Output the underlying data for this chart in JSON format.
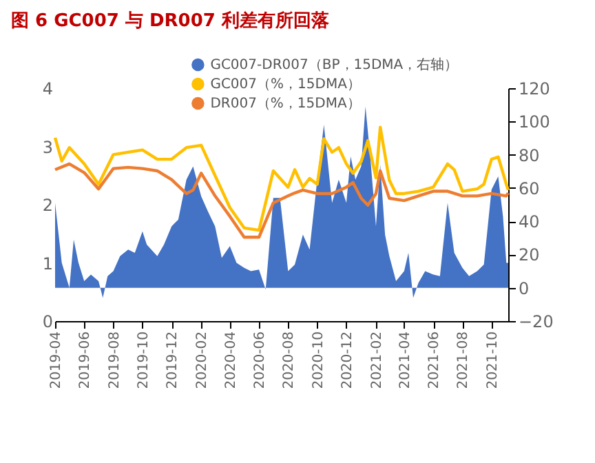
{
  "chart_data": {
    "type": "line",
    "title": "图 6  GC007 与 DR007 利差有所回落",
    "xlim": [
      "2019-04-01",
      "2021-11-05"
    ],
    "xticks": [
      "2019-04",
      "2019-06",
      "2019-08",
      "2019-10",
      "2019-12",
      "2020-02",
      "2020-04",
      "2020-06",
      "2020-08",
      "2020-10",
      "2020-12",
      "2021-02",
      "2021-04",
      "2021-06",
      "2021-08",
      "2021-10"
    ],
    "ylim": [
      0,
      4
    ],
    "yticks": [
      0,
      1,
      2,
      3,
      4
    ],
    "y2lim": [
      -20,
      120
    ],
    "y2ticks": [
      -20,
      0,
      20,
      40,
      60,
      80,
      100,
      120
    ],
    "grid": false,
    "legend": "top",
    "marker": "none",
    "line_style": "solid",
    "series": [
      {
        "name": "GC007-DR007（BP，15DMA，右轴）",
        "type": "area",
        "axis": "y2",
        "color": "#4472c4",
        "x": [
          "2019-04-01",
          "2019-04-15",
          "2019-05-01",
          "2019-05-10",
          "2019-05-20",
          "2019-06-01",
          "2019-06-15",
          "2019-07-01",
          "2019-07-10",
          "2019-07-20",
          "2019-08-01",
          "2019-08-15",
          "2019-09-01",
          "2019-09-15",
          "2019-10-01",
          "2019-10-10",
          "2019-11-01",
          "2019-11-15",
          "2019-12-01",
          "2019-12-15",
          "2020-01-01",
          "2020-01-15",
          "2020-02-01",
          "2020-02-15",
          "2020-03-01",
          "2020-03-15",
          "2020-04-01",
          "2020-04-15",
          "2020-05-01",
          "2020-05-15",
          "2020-06-01",
          "2020-06-15",
          "2020-07-01",
          "2020-07-15",
          "2020-08-01",
          "2020-08-15",
          "2020-09-01",
          "2020-09-15",
          "2020-10-01",
          "2020-10-15",
          "2020-11-01",
          "2020-11-15",
          "2020-12-01",
          "2020-12-10",
          "2020-12-20",
          "2021-01-01",
          "2021-01-10",
          "2021-01-20",
          "2021-02-01",
          "2021-02-10",
          "2021-02-20",
          "2021-03-01",
          "2021-03-15",
          "2021-04-01",
          "2021-04-10",
          "2021-04-20",
          "2021-05-01",
          "2021-05-15",
          "2021-06-01",
          "2021-06-15",
          "2021-07-01",
          "2021-07-15",
          "2021-08-01",
          "2021-08-15",
          "2021-09-01",
          "2021-09-15",
          "2021-10-01",
          "2021-10-15",
          "2021-10-25",
          "2021-11-01",
          "2021-11-05"
        ],
        "values": [
          51,
          15,
          0,
          29,
          15,
          4,
          8,
          4,
          -6,
          7,
          10,
          19,
          23,
          21,
          34,
          26,
          19,
          26,
          37,
          41,
          65,
          73,
          55,
          46,
          37,
          18,
          25,
          15,
          12,
          10,
          11,
          -1,
          54,
          54,
          10,
          14,
          32,
          23,
          65,
          98,
          51,
          65,
          51,
          79,
          65,
          73,
          109,
          79,
          37,
          74,
          32,
          19,
          4,
          10,
          21,
          -6,
          3,
          10,
          8,
          7,
          51,
          21,
          12,
          7,
          10,
          14,
          59,
          67,
          43,
          15,
          15
        ]
      },
      {
        "name": "GC007（%，15DMA）",
        "color": "#ffc000",
        "x": [
          "2019-04-01",
          "2019-04-15",
          "2019-05-01",
          "2019-06-01",
          "2019-07-01",
          "2019-08-01",
          "2019-09-01",
          "2019-10-01",
          "2019-11-01",
          "2019-12-01",
          "2020-01-01",
          "2020-02-01",
          "2020-03-01",
          "2020-04-01",
          "2020-05-01",
          "2020-06-01",
          "2020-07-01",
          "2020-08-01",
          "2020-08-15",
          "2020-09-01",
          "2020-09-15",
          "2020-10-01",
          "2020-10-15",
          "2020-11-01",
          "2020-11-15",
          "2020-12-01",
          "2020-12-15",
          "2021-01-01",
          "2021-01-15",
          "2021-02-01",
          "2021-02-10",
          "2021-03-01",
          "2021-03-15",
          "2021-04-01",
          "2021-05-01",
          "2021-06-01",
          "2021-07-01",
          "2021-07-15",
          "2021-08-01",
          "2021-09-01",
          "2021-09-15",
          "2021-10-01",
          "2021-10-15",
          "2021-11-01",
          "2021-11-05"
        ],
        "values": [
          3.15,
          2.75,
          2.98,
          2.7,
          2.35,
          2.86,
          2.9,
          2.94,
          2.78,
          2.78,
          2.98,
          3.02,
          2.5,
          1.95,
          1.6,
          1.56,
          2.58,
          2.3,
          2.6,
          2.3,
          2.45,
          2.35,
          3.13,
          2.9,
          2.98,
          2.7,
          2.54,
          2.74,
          3.1,
          2.46,
          3.33,
          2.42,
          2.19,
          2.19,
          2.23,
          2.3,
          2.7,
          2.6,
          2.23,
          2.27,
          2.35,
          2.78,
          2.82,
          2.35,
          2.25
        ]
      },
      {
        "name": "DR007（%，15DMA）",
        "color": "#ed7d31",
        "x": [
          "2019-04-01",
          "2019-05-01",
          "2019-06-01",
          "2019-07-01",
          "2019-08-01",
          "2019-09-01",
          "2019-10-01",
          "2019-11-01",
          "2019-12-01",
          "2020-01-01",
          "2020-01-15",
          "2020-02-01",
          "2020-03-01",
          "2020-04-01",
          "2020-05-01",
          "2020-06-01",
          "2020-07-01",
          "2020-08-01",
          "2020-08-15",
          "2020-09-01",
          "2020-10-01",
          "2020-11-01",
          "2020-12-01",
          "2020-12-15",
          "2021-01-01",
          "2021-01-15",
          "2021-02-01",
          "2021-02-10",
          "2021-03-01",
          "2021-04-01",
          "2021-05-01",
          "2021-06-01",
          "2021-07-01",
          "2021-08-01",
          "2021-09-01",
          "2021-10-01",
          "2021-11-01",
          "2021-11-05"
        ],
        "values": [
          2.6,
          2.7,
          2.55,
          2.27,
          2.62,
          2.64,
          2.62,
          2.58,
          2.43,
          2.19,
          2.25,
          2.54,
          2.15,
          1.8,
          1.44,
          1.44,
          2.03,
          2.15,
          2.2,
          2.25,
          2.19,
          2.19,
          2.3,
          2.38,
          2.11,
          1.99,
          2.19,
          2.58,
          2.11,
          2.07,
          2.15,
          2.23,
          2.23,
          2.15,
          2.15,
          2.19,
          2.15,
          2.2
        ]
      }
    ]
  }
}
